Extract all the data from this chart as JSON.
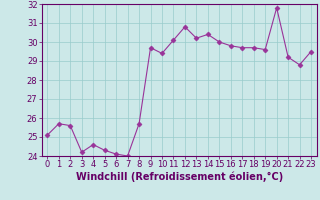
{
  "x": [
    0,
    1,
    2,
    3,
    4,
    5,
    6,
    7,
    8,
    9,
    10,
    11,
    12,
    13,
    14,
    15,
    16,
    17,
    18,
    19,
    20,
    21,
    22,
    23
  ],
  "y": [
    25.1,
    25.7,
    25.6,
    24.2,
    24.6,
    24.3,
    24.1,
    24.0,
    25.7,
    29.7,
    29.4,
    30.1,
    30.8,
    30.2,
    30.4,
    30.0,
    29.8,
    29.7,
    29.7,
    29.6,
    31.8,
    29.2,
    28.8,
    29.5
  ],
  "line_color": "#993399",
  "marker": "D",
  "marker_size": 2.5,
  "bg_color": "#cce8e8",
  "grid_color": "#99cccc",
  "xlabel": "Windchill (Refroidissement éolien,°C)",
  "ylim": [
    24,
    32
  ],
  "yticks": [
    24,
    25,
    26,
    27,
    28,
    29,
    30,
    31,
    32
  ],
  "xticks": [
    0,
    1,
    2,
    3,
    4,
    5,
    6,
    7,
    8,
    9,
    10,
    11,
    12,
    13,
    14,
    15,
    16,
    17,
    18,
    19,
    20,
    21,
    22,
    23
  ],
  "label_color": "#660066",
  "tick_color": "#660066",
  "axis_color": "#660066",
  "font_size": 6,
  "xlabel_fontsize": 7
}
